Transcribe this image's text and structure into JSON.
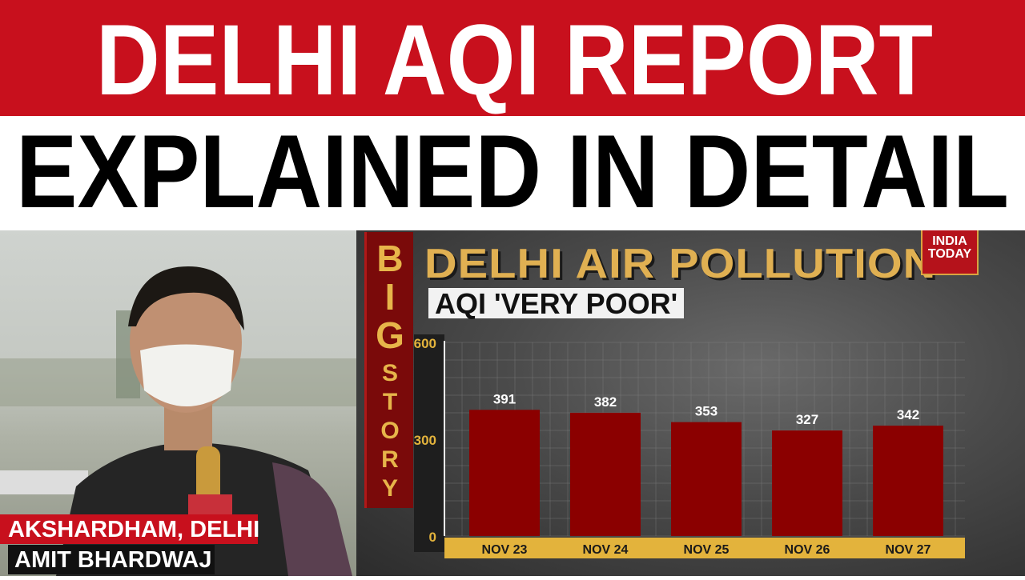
{
  "headline": {
    "line1": "DELHI AQI REPORT",
    "line2": "EXPLAINED IN DETAIL"
  },
  "colors": {
    "banner_red": "#c8101d",
    "bar_red": "#8b0000",
    "gold": "#e3b33c"
  },
  "big_story": {
    "letters": [
      "B",
      "I",
      "G",
      "S",
      "T",
      "O",
      "R",
      "Y"
    ]
  },
  "graphic": {
    "title": "DELHI AIR POLLUTION",
    "subtitle": "AQI 'VERY POOR'"
  },
  "logo": {
    "line1": "INDIA",
    "line2": "TODAY"
  },
  "caption": {
    "location": "AKSHARDHAM, DELHI",
    "reporter": "AMIT BHARDWAJ"
  },
  "chart_data": {
    "type": "bar",
    "title": "DELHI AIR POLLUTION",
    "subtitle": "AQI 'VERY POOR'",
    "categories": [
      "NOV 23",
      "NOV 24",
      "NOV 25",
      "NOV 26",
      "NOV 27"
    ],
    "values": [
      391,
      382,
      353,
      327,
      342
    ],
    "data_labels": [
      "391",
      "382",
      "353",
      "327",
      "342"
    ],
    "yticks": [
      "0",
      "300",
      "600"
    ],
    "ylim": [
      0,
      600
    ],
    "grid": true
  }
}
